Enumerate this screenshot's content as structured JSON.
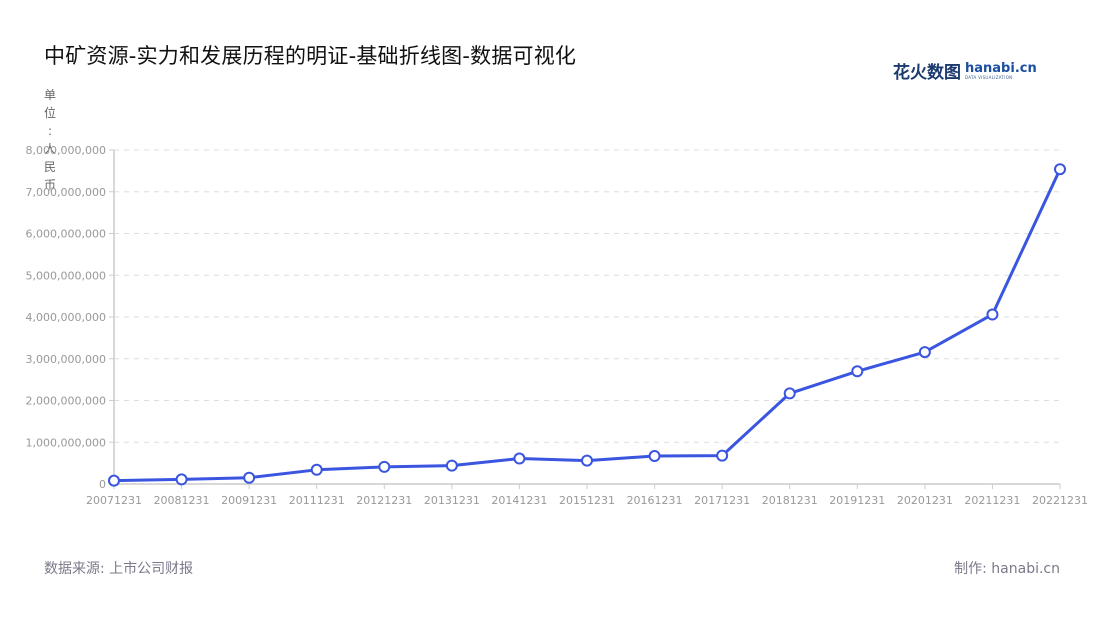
{
  "header": {
    "title": "中矿资源-实力和发展历程的明证-基础折线图-数据可视化",
    "logo_cn": "花火数图",
    "logo_en": "hanabi.cn",
    "logo_sub": "DATA VISUALIZATION"
  },
  "unit_label": [
    "单",
    "位",
    ":",
    "人",
    "民",
    "币"
  ],
  "footer": {
    "source": "数据来源: 上市公司财报",
    "credit": "制作: hanabi.cn"
  },
  "colors": {
    "line": "#3a55e0",
    "grid": "#dddddd",
    "axis": "#cccccc",
    "tick_label": "#999999"
  },
  "chart_data": {
    "type": "line",
    "title": "中矿资源-实力和发展历程的明证-基础折线图-数据可视化",
    "xlabel": "",
    "ylabel": "单位: 人民币",
    "categories": [
      "20071231",
      "20081231",
      "20091231",
      "20111231",
      "20121231",
      "20131231",
      "20141231",
      "20151231",
      "20161231",
      "20171231",
      "20181231",
      "20191231",
      "20201231",
      "20211231",
      "20221231"
    ],
    "series": [
      {
        "name": "中矿资源",
        "values": [
          80000000,
          110000000,
          150000000,
          340000000,
          410000000,
          440000000,
          610000000,
          560000000,
          670000000,
          680000000,
          2170000000,
          2700000000,
          3160000000,
          4060000000,
          7540000000
        ]
      }
    ],
    "ylim": [
      0,
      8000000000
    ],
    "yticks": [
      0,
      1000000000,
      2000000000,
      3000000000,
      4000000000,
      5000000000,
      6000000000,
      7000000000,
      8000000000
    ],
    "ytick_labels": [
      "0",
      "1,000,000,000",
      "2,000,000,000",
      "3,000,000,000",
      "4,000,000,000",
      "5,000,000,000",
      "6,000,000,000",
      "7,000,000,000",
      "8,000,000,000"
    ],
    "grid": true,
    "legend": "none"
  }
}
